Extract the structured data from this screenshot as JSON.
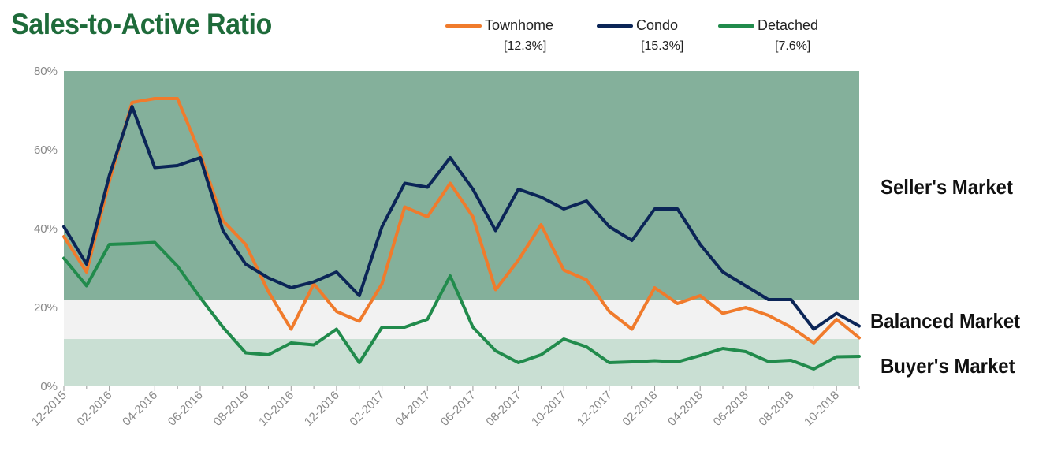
{
  "chart_data": {
    "type": "line",
    "title": "Sales-to-Active Ratio",
    "xlabel": "",
    "ylabel": "",
    "ylim": [
      0,
      80
    ],
    "y_ticks": [
      "0%",
      "20%",
      "40%",
      "60%",
      "80%"
    ],
    "x_tick_labels": [
      "12-2015",
      "02-2016",
      "04-2016",
      "06-2016",
      "08-2016",
      "10-2016",
      "12-2016",
      "02-2017",
      "04-2017",
      "06-2017",
      "08-2017",
      "10-2017",
      "12-2017",
      "02-2018",
      "04-2018",
      "06-2018",
      "08-2018",
      "10-2018"
    ],
    "x": [
      "12-2015",
      "01-2016",
      "02-2016",
      "03-2016",
      "04-2016",
      "05-2016",
      "06-2016",
      "07-2016",
      "08-2016",
      "09-2016",
      "10-2016",
      "11-2016",
      "12-2016",
      "01-2017",
      "02-2017",
      "03-2017",
      "04-2017",
      "05-2017",
      "06-2017",
      "07-2017",
      "08-2017",
      "09-2017",
      "10-2017",
      "11-2017",
      "12-2017",
      "01-2018",
      "02-2018",
      "03-2018",
      "04-2018",
      "05-2018",
      "06-2018",
      "07-2018",
      "08-2018",
      "09-2018",
      "10-2018",
      "11-2018"
    ],
    "series": [
      {
        "name": "Townhome",
        "color": "#f07b2c",
        "current": "[12.3%]",
        "values": [
          38,
          29,
          52,
          72,
          73,
          73,
          59,
          42,
          36,
          24,
          14.5,
          26,
          19,
          16.5,
          26,
          45.5,
          43,
          51.5,
          43,
          24.5,
          32,
          41,
          29.5,
          27,
          19,
          14.5,
          25,
          21,
          23,
          18.5,
          20,
          18,
          15,
          11,
          17,
          12.3
        ]
      },
      {
        "name": "Condo",
        "color": "#0b2557",
        "current": "[15.3%]",
        "values": [
          40.5,
          31,
          53.5,
          71,
          55.5,
          56,
          58,
          39.5,
          31,
          27.5,
          25,
          26.5,
          29,
          23,
          40.5,
          51.5,
          50.5,
          58,
          50,
          39.5,
          50,
          48,
          45,
          47,
          40.5,
          37,
          45,
          45,
          36,
          29,
          25.5,
          22,
          22,
          14.5,
          18.5,
          15.3
        ]
      },
      {
        "name": "Detached",
        "color": "#218b4c",
        "current": "[7.6%]",
        "values": [
          32.5,
          25.5,
          36,
          36.2,
          36.5,
          30.5,
          22.5,
          15,
          8.5,
          8,
          11,
          10.5,
          14.5,
          6,
          15,
          15,
          17,
          28,
          15,
          9,
          6,
          8,
          12,
          10,
          6,
          6.2,
          6.5,
          6.2,
          7.8,
          9.6,
          8.8,
          6.3,
          6.6,
          4.4,
          7.5,
          7.6
        ]
      }
    ],
    "zones": [
      {
        "name": "Seller's Market",
        "from": 22,
        "to": 80,
        "color": "#84b09b"
      },
      {
        "name": "Balanced Market",
        "from": 12,
        "to": 22,
        "color": "#f2f2f2"
      },
      {
        "name": "Buyer's Market",
        "from": 0,
        "to": 12,
        "color": "#c9dfd3"
      }
    ],
    "grid": false,
    "legend_position": "top"
  }
}
